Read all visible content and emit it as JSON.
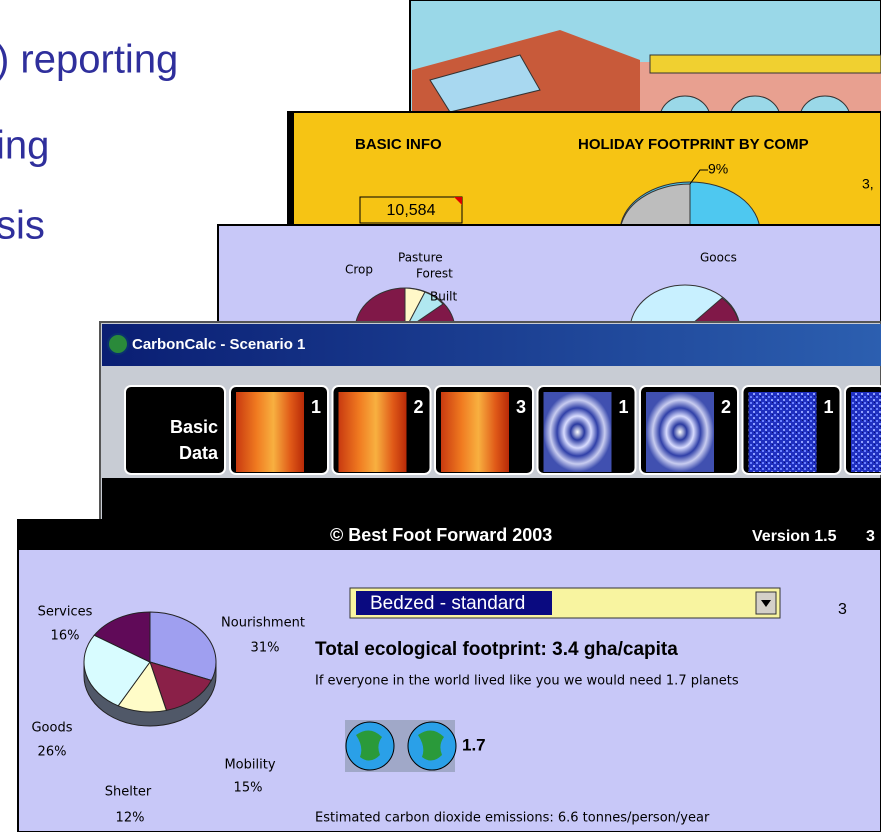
{
  "slide_text": [
    ") reporting",
    "ing",
    "sis"
  ],
  "windows": {
    "holiday": {
      "basic_info": "BASIC INFO",
      "holiday_title": "HOLIDAY FOOTPRINT BY COMP",
      "value_box": "10,584",
      "pie_label": "9%",
      "side_label": "3,"
    },
    "landuse": {
      "labels": [
        "Crop",
        "Pasture",
        "Forest",
        "Built",
        "Goocs"
      ]
    },
    "carboncalc": {
      "title": "CarbonCalc - Scenario 1",
      "basic_tab": [
        "Basic",
        "Data"
      ],
      "tabs": [
        "1",
        "2",
        "3",
        "1",
        "2",
        "1"
      ]
    },
    "main": {
      "header": "© Best Foot Forward 2003",
      "version": "Version 1.5",
      "version_suffix": "3",
      "pie": [
        {
          "name": "Nourishment",
          "value": 31,
          "label": "31%",
          "color": "#9f9ff0"
        },
        {
          "name": "Mobility",
          "value": 15,
          "label": "15%",
          "color": "#8a2048"
        },
        {
          "name": "Shelter",
          "value": 12,
          "label": "12%",
          "color": "#fffcc8"
        },
        {
          "name": "Goods",
          "value": 26,
          "label": "26%",
          "color": "#d8fcff"
        },
        {
          "name": "Services",
          "value": 16,
          "label": "16%",
          "color": "#600a58"
        }
      ],
      "dropdown": "Bedzed - standard",
      "right_number": "3",
      "total": "Total ecological footprint: 3.4 gha/capita",
      "planets_text": "If everyone in the world lived like you we would need 1.7 planets",
      "planets_value": "1.7",
      "co2": "Estimated carbon dioxide emissions: 6.6 tonnes/person/year"
    }
  }
}
